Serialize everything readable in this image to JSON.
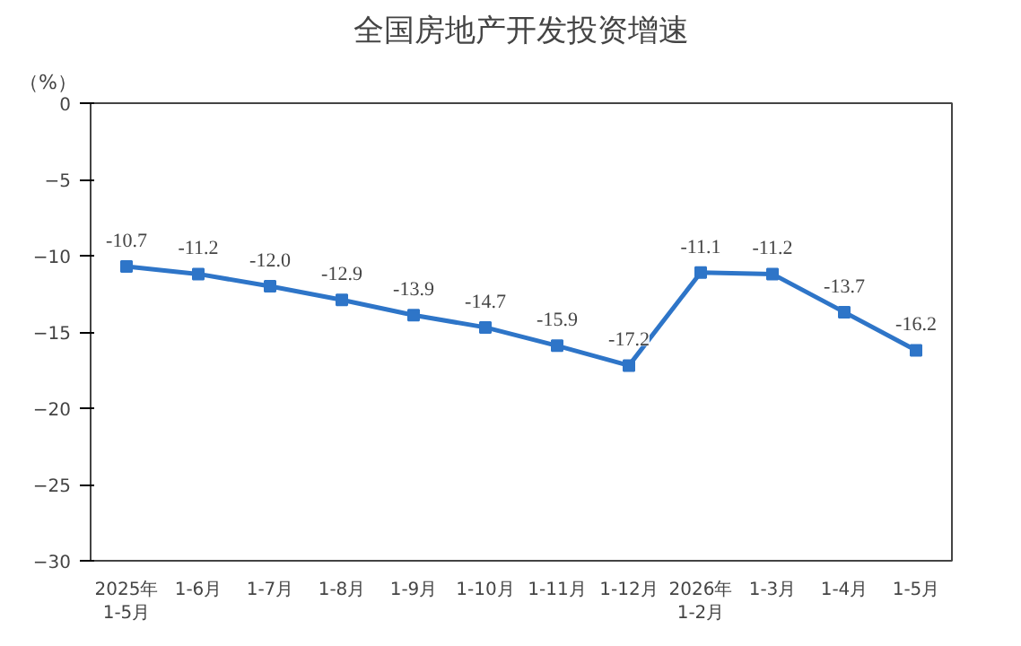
{
  "chart_data": {
    "type": "line",
    "title": "全国房地产开发投资增速",
    "ylabel": "（%）",
    "categories": [
      "2025年\n1-5月",
      "1-6月",
      "1-7月",
      "1-8月",
      "1-9月",
      "1-10月",
      "1-11月",
      "1-12月",
      "2026年\n1-2月",
      "1-3月",
      "1-4月",
      "1-5月"
    ],
    "series": [
      {
        "color": "#2e75c8",
        "values": [
          -10.7,
          -11.2,
          -12.0,
          -12.9,
          -13.9,
          -14.7,
          -15.9,
          -17.2,
          -11.1,
          -11.2,
          -13.7,
          -16.2
        ],
        "value_labels": [
          "-10.7",
          "-11.2",
          "-12.0",
          "-12.9",
          "-13.9",
          "-14.7",
          "-15.9",
          "-17.2",
          "-11.1",
          "-11.2",
          "-13.7",
          "-16.2"
        ]
      }
    ],
    "ylim": [
      -30,
      0
    ],
    "yticks": [
      -30,
      -25,
      -20,
      -15,
      -10,
      -5,
      0
    ],
    "marker": "square",
    "grid": false,
    "line_style": "solid"
  }
}
